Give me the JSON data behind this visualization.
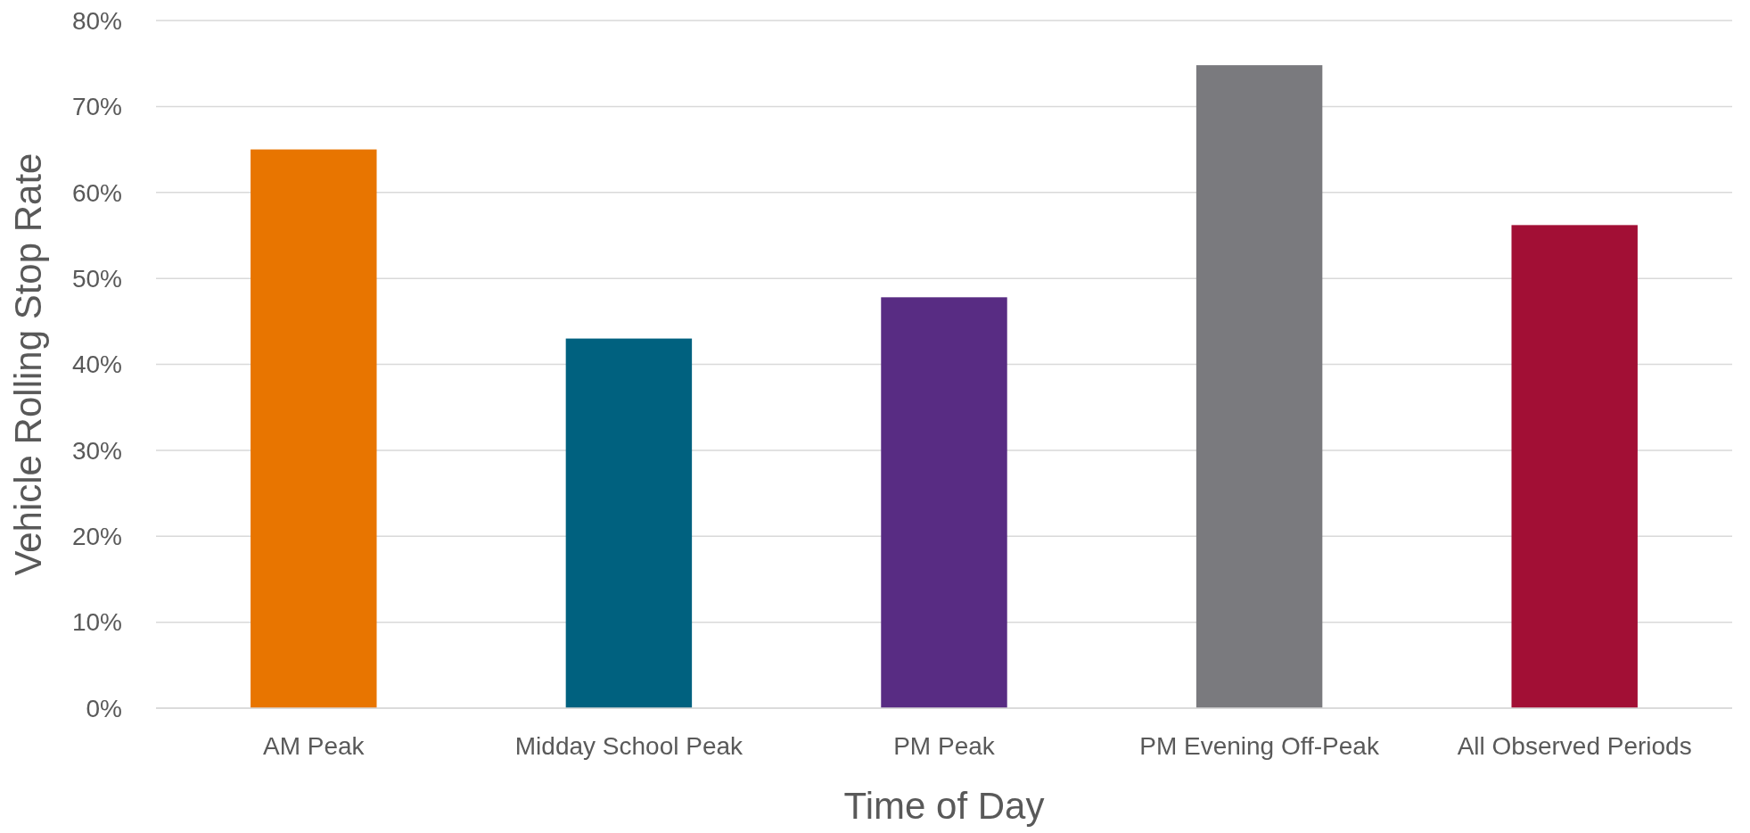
{
  "chart_data": {
    "type": "bar",
    "xlabel": "Time of Day",
    "ylabel": "Vehicle Rolling Stop Rate",
    "categories": [
      "AM Peak",
      "Midday School Peak",
      "PM Peak",
      "PM Evening Off-Peak",
      "All Observed Periods"
    ],
    "values": [
      65,
      43,
      47.8,
      74.8,
      56.2
    ],
    "colors": [
      "#e87500",
      "#00617f",
      "#582c83",
      "#7a7a7e",
      "#a20f35"
    ],
    "ylim": [
      0,
      80
    ],
    "yticks": [
      {
        "value": 0,
        "label": "0%"
      },
      {
        "value": 10,
        "label": "10%"
      },
      {
        "value": 20,
        "label": "20%"
      },
      {
        "value": 30,
        "label": "30%"
      },
      {
        "value": 40,
        "label": "40%"
      },
      {
        "value": 50,
        "label": "50%"
      },
      {
        "value": 60,
        "label": "60%"
      },
      {
        "value": 70,
        "label": "70%"
      },
      {
        "value": 80,
        "label": "80%"
      }
    ],
    "grid": "y"
  }
}
